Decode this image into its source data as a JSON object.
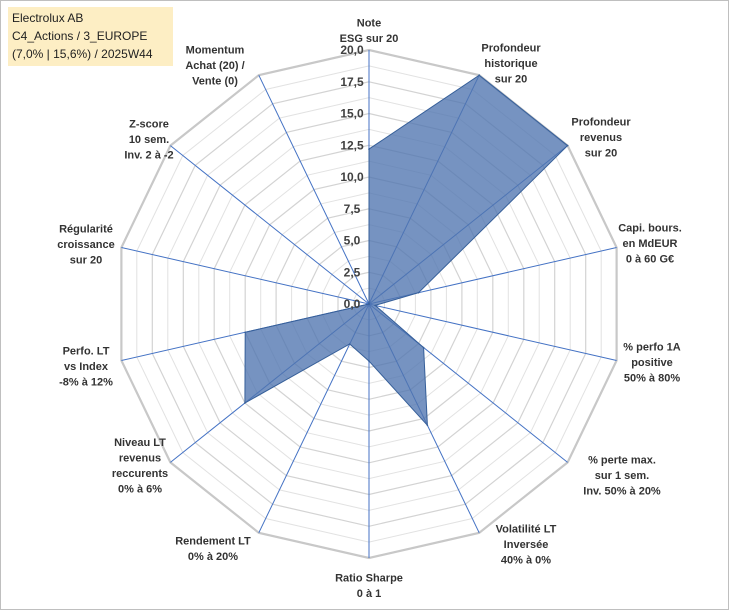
{
  "chart_data": {
    "type": "radar",
    "title": [
      "Electrolux AB",
      "C4_Actions / 3_EUROPE",
      "(7,0% | 15,6%) / 2025W44"
    ],
    "r_min": 0,
    "r_max": 20,
    "tick_step": 2.5,
    "tick_labels": [
      "0,0",
      "2,5",
      "5,0",
      "7,5",
      "10,0",
      "12,5",
      "15,0",
      "17,5",
      "20,0"
    ],
    "axes": [
      {
        "label": [
          "Note",
          "ESG sur 20"
        ],
        "value": 12.2
      },
      {
        "label": [
          "Profondeur",
          "historique",
          "sur 20"
        ],
        "value": 20.0
      },
      {
        "label": [
          "Profondeur",
          "revenus",
          "sur 20"
        ],
        "value": 20.0
      },
      {
        "label": [
          "Capi. bours.",
          "en MdEUR",
          "0 à 60 G€"
        ],
        "value": 4.0
      },
      {
        "label": [
          "% perfo 1A",
          "positive",
          "50% à 80%"
        ],
        "value": 0.5
      },
      {
        "label": [
          "% perte max.",
          "sur 1 sem.",
          "Inv. 50% à 20%"
        ],
        "value": 5.5
      },
      {
        "label": [
          "Volatilité LT",
          "Inversée",
          "40% à 0%"
        ],
        "value": 10.6
      },
      {
        "label": [
          "Ratio Sharpe",
          "0 à 1"
        ],
        "value": 4.5
      },
      {
        "label": [
          "Rendement LT",
          "0% à 20%"
        ],
        "value": 3.5
      },
      {
        "label": [
          "Niveau LT",
          "revenus",
          "reccurents",
          "0% à 6%"
        ],
        "value": 12.5
      },
      {
        "label": [
          "Perfo. LT",
          "vs Index",
          "-8% à 12%"
        ],
        "value": 10.0
      },
      {
        "label": [
          "Régularité",
          "croissance",
          "sur 20"
        ],
        "value": 0.0
      },
      {
        "label": [
          "Z-score",
          "10 sem.",
          "Inv. 2 à -2"
        ],
        "value": 0.0
      },
      {
        "label": [
          "Momentum",
          "Achat (20) /",
          "Vente (0)"
        ],
        "value": 0.0
      }
    ],
    "colors": {
      "fill": "#4f75b0",
      "fill_opacity": 0.78,
      "series_line": "#365f99",
      "spoke": "#4472c4",
      "grid": "#d0d0d0"
    }
  }
}
